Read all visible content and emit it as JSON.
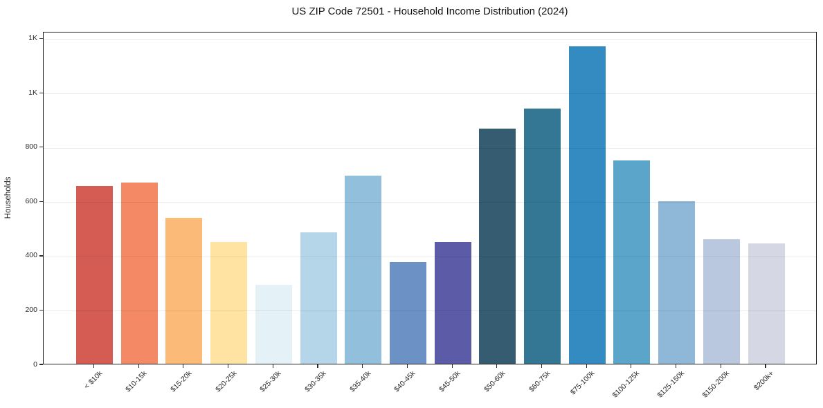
{
  "chart_data": {
    "type": "bar",
    "title": "US ZIP Code 72501 - Household Income Distribution (2024)",
    "xlabel": "",
    "ylabel": "Households",
    "categories": [
      "< $10k",
      "$10-15k",
      "$15-20k",
      "$20-25k",
      "$25-30k",
      "$30-35k",
      "$35-40k",
      "$40-45k",
      "$45-50k",
      "$50-60k",
      "$60-75k",
      "$75-100k",
      "$100-125k",
      "$125-150k",
      "$150-200k",
      "$200k+"
    ],
    "values": [
      654,
      667,
      537,
      449,
      290,
      484,
      692,
      374,
      448,
      867,
      941,
      1168,
      748,
      598,
      459,
      443
    ],
    "bar_colors": [
      "#d45c52",
      "#f48a65",
      "#fbba77",
      "#fee3a3",
      "#e4f1f6",
      "#b5d6e8",
      "#92bfdc",
      "#6c91c5",
      "#5b5ba8",
      "#355c70",
      "#337795",
      "#348bc1",
      "#5ba4ca",
      "#8fb8d8",
      "#b9c8de",
      "#d5d7e4"
    ],
    "ylim": [
      0,
      1225
    ],
    "y_ticks": [
      {
        "value": 0,
        "label": "0"
      },
      {
        "value": 200,
        "label": "200"
      },
      {
        "value": 400,
        "label": "400"
      },
      {
        "value": 600,
        "label": "600"
      },
      {
        "value": 800,
        "label": "800"
      },
      {
        "value": 1000,
        "label": "1K"
      },
      {
        "value": 1200,
        "label": "1K"
      }
    ],
    "grid": "horizontal",
    "legend": "none",
    "background_color": "#ffffff",
    "frame_color": "#1c1c1c",
    "grid_color": "#e9e9e9"
  }
}
